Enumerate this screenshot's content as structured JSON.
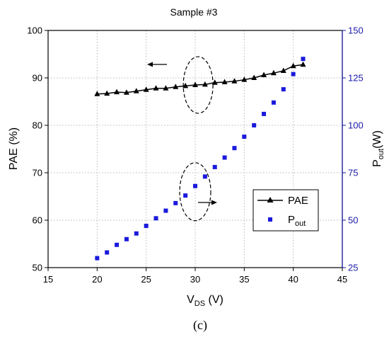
{
  "chart_data": {
    "type": "line",
    "title": "Sample #3",
    "caption": "(c)",
    "xlabel": {
      "main": "V",
      "sub": "DS",
      "unit": " (V)"
    },
    "ylabel_left": "PAE (%)",
    "ylabel_right": {
      "main": "P",
      "sub": "out",
      "unit": "(W)"
    },
    "xlim": [
      15,
      45
    ],
    "ylim_left": [
      50,
      100
    ],
    "ylim_right": [
      25,
      150
    ],
    "x_ticks": [
      "15",
      "20",
      "25",
      "30",
      "35",
      "40",
      "45"
    ],
    "y_left_ticks": [
      "50",
      "60",
      "70",
      "80",
      "90",
      "100"
    ],
    "y_right_ticks": [
      "25",
      "50",
      "75",
      "100",
      "125",
      "150"
    ],
    "grid": true,
    "legend": {
      "position": "center-right",
      "items": [
        {
          "main": "PAE",
          "sub": ""
        },
        {
          "main": "P",
          "sub": "out"
        }
      ]
    },
    "x": [
      20,
      21,
      22,
      23,
      24,
      25,
      26,
      27,
      28,
      29,
      30,
      31,
      32,
      33,
      34,
      35,
      36,
      37,
      38,
      39,
      40,
      41
    ],
    "series": [
      {
        "name": "PAE",
        "axis": "left",
        "marker": "triangle",
        "color": "#000000",
        "values": [
          86.6,
          86.7,
          87.0,
          86.9,
          87.2,
          87.5,
          87.8,
          87.8,
          88.1,
          88.3,
          88.5,
          88.6,
          89.0,
          89.1,
          89.3,
          89.6,
          90.0,
          90.6,
          91.0,
          91.5,
          92.5,
          92.8
        ]
      },
      {
        "name": "Pout",
        "axis": "right",
        "marker": "square",
        "color": "#1a1adc",
        "values": [
          30,
          33,
          37,
          40,
          43,
          47,
          51,
          55,
          59,
          63,
          68,
          73,
          78,
          83,
          88,
          94,
          100,
          106,
          112,
          119,
          127,
          135
        ]
      }
    ]
  }
}
